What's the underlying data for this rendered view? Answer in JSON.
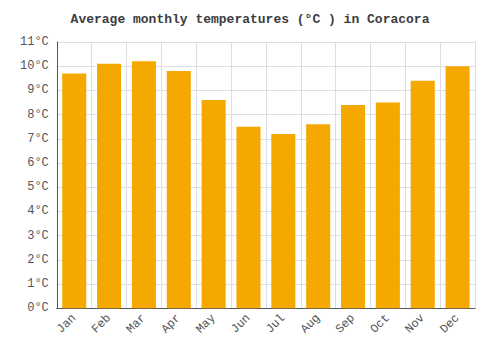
{
  "chart_data": {
    "type": "bar",
    "title": "Average monthly temperatures (°C ) in Coracora",
    "categories": [
      "Jan",
      "Feb",
      "Mar",
      "Apr",
      "May",
      "Jun",
      "Jul",
      "Aug",
      "Sep",
      "Oct",
      "Nov",
      "Dec"
    ],
    "values": [
      9.7,
      10.1,
      10.2,
      9.8,
      8.6,
      7.5,
      7.2,
      7.6,
      8.4,
      8.5,
      9.4,
      10.0
    ],
    "color": "#F5A800",
    "ylim": [
      0,
      11
    ],
    "yticks": [
      {
        "value": 0,
        "label": "0°C"
      },
      {
        "value": 1,
        "label": "1°C"
      },
      {
        "value": 2,
        "label": "2°C"
      },
      {
        "value": 3,
        "label": "3°C"
      },
      {
        "value": 4,
        "label": "4°C"
      },
      {
        "value": 5,
        "label": "5°C"
      },
      {
        "value": 6,
        "label": "6°C"
      },
      {
        "value": 7,
        "label": "7°C"
      },
      {
        "value": 8,
        "label": "8°C"
      },
      {
        "value": 9,
        "label": "9°C"
      },
      {
        "value": 10,
        "label": "10°C"
      },
      {
        "value": 11,
        "label": "11°C"
      }
    ],
    "grid": true
  }
}
